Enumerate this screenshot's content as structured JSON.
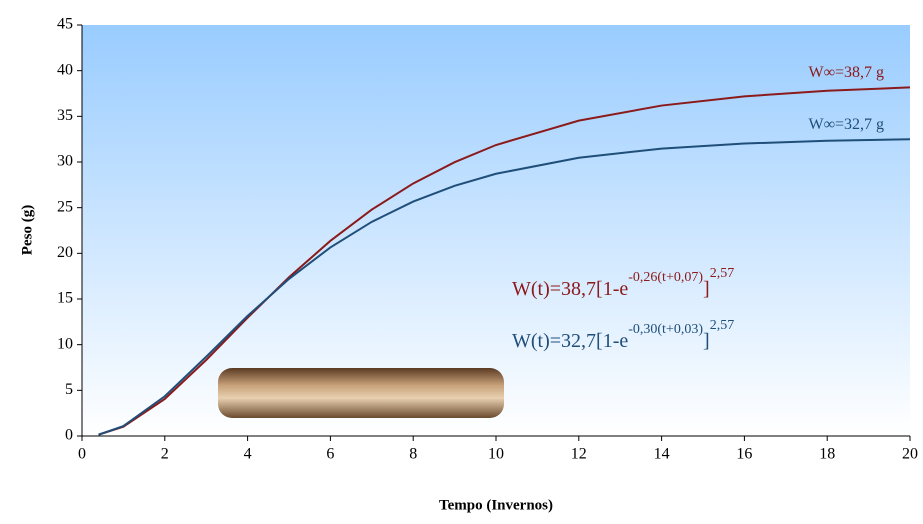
{
  "chart_data": {
    "type": "line",
    "x_label": "Tempo (Invernos)",
    "y_label": "Peso (g)",
    "x": [
      0.4,
      1,
      2,
      3,
      4,
      5,
      6,
      7,
      8,
      9,
      10,
      12,
      14,
      16,
      18,
      20
    ],
    "series": [
      {
        "name": "W∞=38,7 g",
        "color": "#8b1a1a",
        "values": [
          0.15,
          1.02,
          4.06,
          8.32,
          12.95,
          17.38,
          21.37,
          24.79,
          27.65,
          29.98,
          31.86,
          34.53,
          36.18,
          37.19,
          37.8,
          38.17
        ],
        "equation": [
          "W(t)=38,7[1-e",
          "-0,26(t+0,07)",
          "]",
          "2,57"
        ]
      },
      {
        "name": "W∞=32,7 g",
        "color": "#1f4e79",
        "values": [
          0.14,
          1.09,
          4.35,
          8.68,
          13.15,
          17.2,
          20.65,
          23.45,
          25.67,
          27.39,
          28.71,
          30.47,
          31.47,
          32.02,
          32.33,
          32.49
        ],
        "equation": [
          "W(t)=32,7[1-e",
          "-0,30(t+0,03)",
          "]",
          "2,57"
        ]
      }
    ],
    "xlim": [
      0,
      20
    ],
    "xticks": [
      0,
      2,
      4,
      6,
      8,
      10,
      12,
      14,
      16,
      18,
      20
    ],
    "ylim": [
      0,
      45
    ],
    "yticks": [
      0,
      5,
      10,
      15,
      20,
      25,
      30,
      35,
      40,
      45
    ]
  }
}
